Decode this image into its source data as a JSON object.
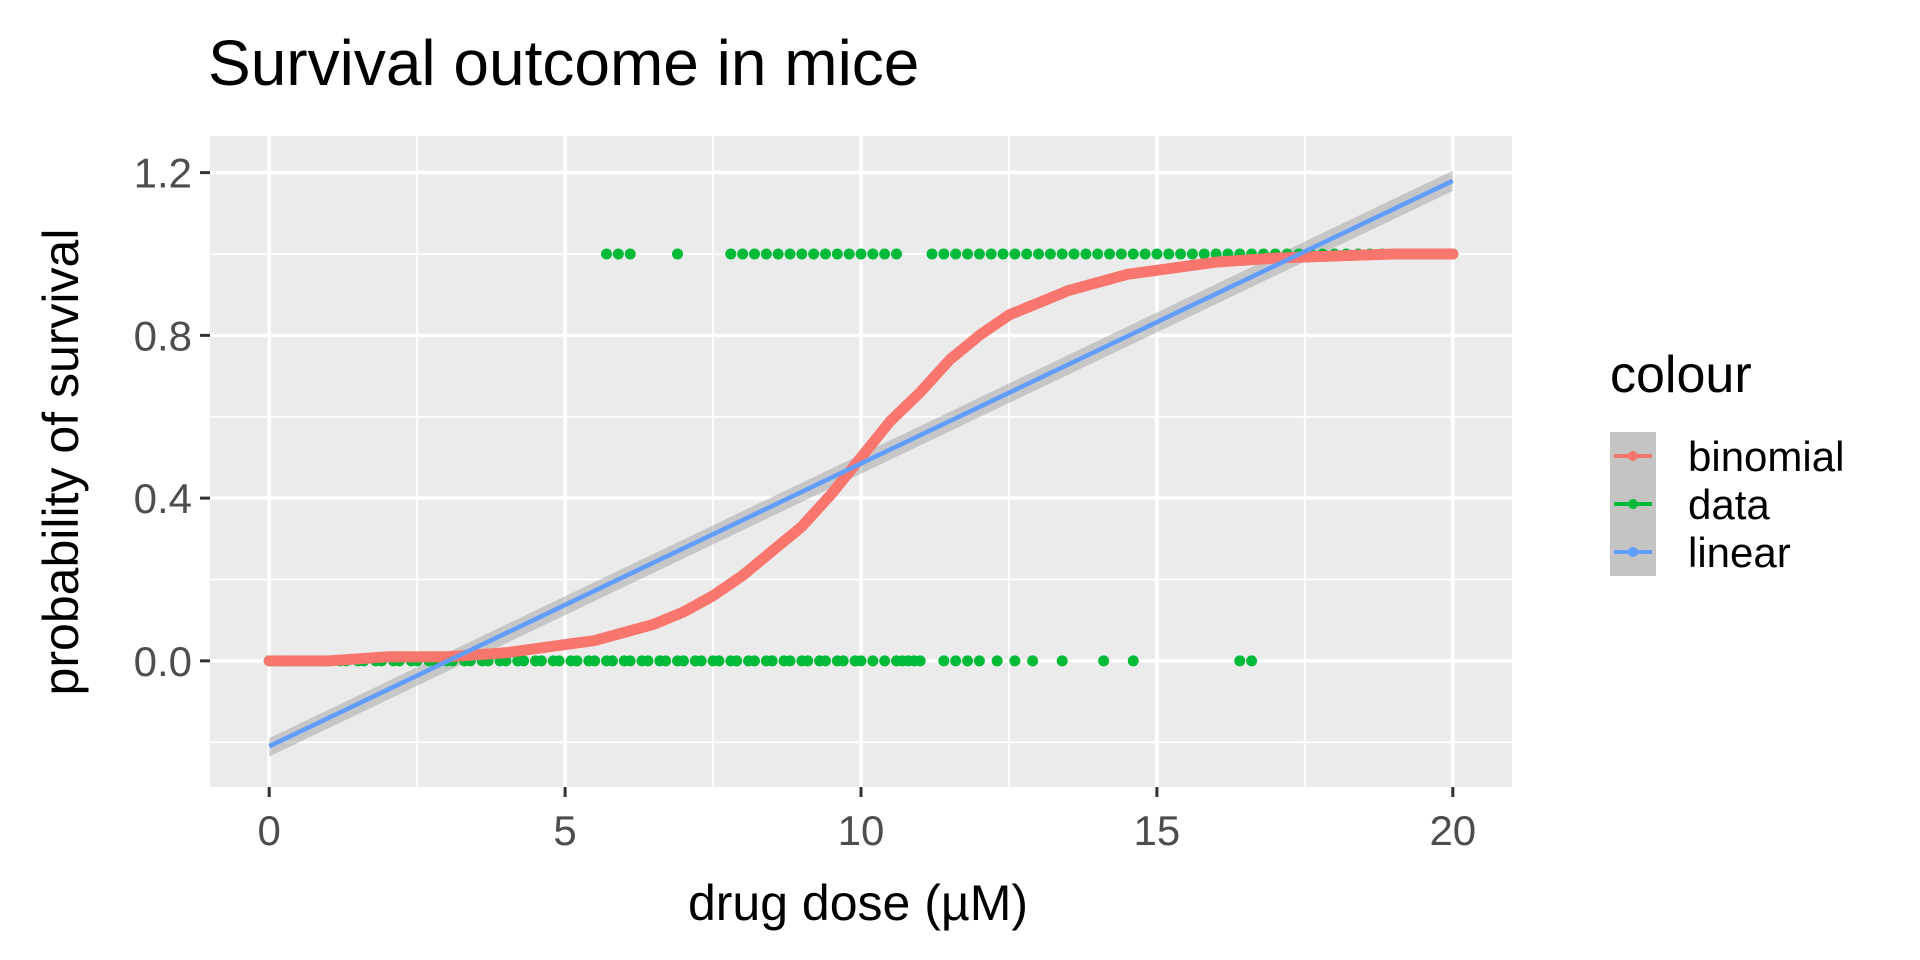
{
  "chart_data": {
    "type": "scatter",
    "title": "Survival outcome in mice",
    "xlabel": "drug dose (µM)",
    "ylabel": "probability of survival",
    "xlim": [
      -1,
      21
    ],
    "ylim": [
      -0.31,
      1.29
    ],
    "x_ticks": [
      0,
      5,
      10,
      15,
      20
    ],
    "x_tick_labels": [
      "0",
      "5",
      "10",
      "15",
      "20"
    ],
    "y_ticks": [
      0.0,
      0.4,
      0.8,
      1.2
    ],
    "y_tick_labels": [
      "0.0",
      "0.4",
      "0.8",
      "1.2"
    ],
    "grid": true,
    "legend": {
      "title": "colour",
      "position": "right",
      "entries": [
        {
          "label": "binomial",
          "color": "#F8766D"
        },
        {
          "label": "data",
          "color": "#00BA38"
        },
        {
          "label": "linear",
          "color": "#619CFF"
        }
      ]
    },
    "series": [
      {
        "name": "data",
        "color": "#00BA38",
        "kind": "points",
        "points": [
          [
            0.0,
            0
          ],
          [
            0.1,
            0
          ],
          [
            0.2,
            0
          ],
          [
            0.3,
            0
          ],
          [
            0.4,
            0
          ],
          [
            0.5,
            0
          ],
          [
            0.6,
            0
          ],
          [
            0.8,
            0
          ],
          [
            0.9,
            0
          ],
          [
            1.0,
            0
          ],
          [
            1.2,
            0
          ],
          [
            1.3,
            0
          ],
          [
            1.5,
            0
          ],
          [
            1.6,
            0
          ],
          [
            1.8,
            0
          ],
          [
            1.9,
            0
          ],
          [
            2.1,
            0
          ],
          [
            2.2,
            0
          ],
          [
            2.4,
            0
          ],
          [
            2.5,
            0
          ],
          [
            2.7,
            0
          ],
          [
            2.8,
            0
          ],
          [
            3.0,
            0
          ],
          [
            3.1,
            0
          ],
          [
            3.3,
            0
          ],
          [
            3.4,
            0
          ],
          [
            3.6,
            0
          ],
          [
            3.7,
            0
          ],
          [
            3.9,
            0
          ],
          [
            4.0,
            0
          ],
          [
            4.2,
            0
          ],
          [
            4.3,
            0
          ],
          [
            4.5,
            0
          ],
          [
            4.6,
            0
          ],
          [
            4.8,
            0
          ],
          [
            4.9,
            0
          ],
          [
            5.1,
            0
          ],
          [
            5.2,
            0
          ],
          [
            5.4,
            0
          ],
          [
            5.5,
            0
          ],
          [
            5.7,
            0
          ],
          [
            5.8,
            0
          ],
          [
            6.0,
            0
          ],
          [
            6.1,
            0
          ],
          [
            6.3,
            0
          ],
          [
            6.4,
            0
          ],
          [
            6.6,
            0
          ],
          [
            6.7,
            0
          ],
          [
            6.9,
            0
          ],
          [
            7.0,
            0
          ],
          [
            7.2,
            0
          ],
          [
            7.3,
            0
          ],
          [
            7.5,
            0
          ],
          [
            7.6,
            0
          ],
          [
            7.8,
            0
          ],
          [
            7.9,
            0
          ],
          [
            8.1,
            0
          ],
          [
            8.2,
            0
          ],
          [
            8.4,
            0
          ],
          [
            8.5,
            0
          ],
          [
            8.7,
            0
          ],
          [
            8.8,
            0
          ],
          [
            9.0,
            0
          ],
          [
            9.1,
            0
          ],
          [
            9.3,
            0
          ],
          [
            9.4,
            0
          ],
          [
            9.6,
            0
          ],
          [
            9.7,
            0
          ],
          [
            9.9,
            0
          ],
          [
            10.0,
            0
          ],
          [
            10.2,
            0
          ],
          [
            10.4,
            0
          ],
          [
            10.6,
            0
          ],
          [
            10.7,
            0
          ],
          [
            10.8,
            0
          ],
          [
            10.9,
            0
          ],
          [
            11.0,
            0
          ],
          [
            11.4,
            0
          ],
          [
            11.6,
            0
          ],
          [
            11.8,
            0
          ],
          [
            12.0,
            0
          ],
          [
            12.3,
            0
          ],
          [
            12.6,
            0
          ],
          [
            12.9,
            0
          ],
          [
            13.4,
            0
          ],
          [
            14.1,
            0
          ],
          [
            14.6,
            0
          ],
          [
            16.4,
            0
          ],
          [
            16.6,
            0
          ],
          [
            5.7,
            1
          ],
          [
            5.9,
            1
          ],
          [
            6.1,
            1
          ],
          [
            6.9,
            1
          ],
          [
            7.8,
            1
          ],
          [
            8.0,
            1
          ],
          [
            8.2,
            1
          ],
          [
            8.4,
            1
          ],
          [
            8.6,
            1
          ],
          [
            8.8,
            1
          ],
          [
            9.0,
            1
          ],
          [
            9.2,
            1
          ],
          [
            9.4,
            1
          ],
          [
            9.6,
            1
          ],
          [
            9.8,
            1
          ],
          [
            10.0,
            1
          ],
          [
            10.2,
            1
          ],
          [
            10.4,
            1
          ],
          [
            10.6,
            1
          ],
          [
            11.2,
            1
          ],
          [
            11.4,
            1
          ],
          [
            11.6,
            1
          ],
          [
            11.8,
            1
          ],
          [
            12.0,
            1
          ],
          [
            12.2,
            1
          ],
          [
            12.4,
            1
          ],
          [
            12.6,
            1
          ],
          [
            12.8,
            1
          ],
          [
            13.0,
            1
          ],
          [
            13.2,
            1
          ],
          [
            13.4,
            1
          ],
          [
            13.6,
            1
          ],
          [
            13.8,
            1
          ],
          [
            14.0,
            1
          ],
          [
            14.2,
            1
          ],
          [
            14.4,
            1
          ],
          [
            14.6,
            1
          ],
          [
            14.8,
            1
          ],
          [
            15.0,
            1
          ],
          [
            15.2,
            1
          ],
          [
            15.4,
            1
          ],
          [
            15.6,
            1
          ],
          [
            15.8,
            1
          ],
          [
            16.0,
            1
          ],
          [
            16.2,
            1
          ],
          [
            16.4,
            1
          ],
          [
            16.6,
            1
          ],
          [
            16.8,
            1
          ],
          [
            17.0,
            1
          ],
          [
            17.2,
            1
          ],
          [
            17.4,
            1
          ],
          [
            17.6,
            1
          ],
          [
            17.8,
            1
          ],
          [
            18.0,
            1
          ],
          [
            18.2,
            1
          ],
          [
            18.4,
            1
          ],
          [
            18.6,
            1
          ],
          [
            18.8,
            1
          ],
          [
            19.0,
            1
          ],
          [
            19.2,
            1
          ],
          [
            19.4,
            1
          ],
          [
            19.6,
            1
          ],
          [
            19.8,
            1
          ],
          [
            20.0,
            1
          ]
        ]
      },
      {
        "name": "binomial",
        "color": "#F8766D",
        "kind": "points",
        "points": [
          [
            0,
            0.0
          ],
          [
            1,
            0.0
          ],
          [
            2,
            0.01
          ],
          [
            3,
            0.01
          ],
          [
            4,
            0.02
          ],
          [
            4.5,
            0.03
          ],
          [
            5,
            0.04
          ],
          [
            5.5,
            0.05
          ],
          [
            6,
            0.07
          ],
          [
            6.5,
            0.09
          ],
          [
            7,
            0.12
          ],
          [
            7.5,
            0.16
          ],
          [
            8,
            0.21
          ],
          [
            8.5,
            0.27
          ],
          [
            9,
            0.33
          ],
          [
            9.5,
            0.41
          ],
          [
            10,
            0.5
          ],
          [
            10.5,
            0.59
          ],
          [
            11,
            0.66
          ],
          [
            11.5,
            0.74
          ],
          [
            12,
            0.8
          ],
          [
            12.5,
            0.85
          ],
          [
            13,
            0.88
          ],
          [
            13.5,
            0.91
          ],
          [
            14,
            0.93
          ],
          [
            14.5,
            0.95
          ],
          [
            15,
            0.96
          ],
          [
            15.5,
            0.97
          ],
          [
            16,
            0.98
          ],
          [
            17,
            0.99
          ],
          [
            18,
            0.995
          ],
          [
            19,
            1.0
          ],
          [
            20,
            1.0
          ]
        ]
      },
      {
        "name": "linear",
        "color": "#619CFF",
        "kind": "line",
        "points": [
          [
            0,
            -0.21
          ],
          [
            20,
            1.18
          ]
        ],
        "band": [
          [
            0,
            -0.235,
            -0.19
          ],
          [
            20,
            1.155,
            1.205
          ]
        ]
      }
    ]
  }
}
